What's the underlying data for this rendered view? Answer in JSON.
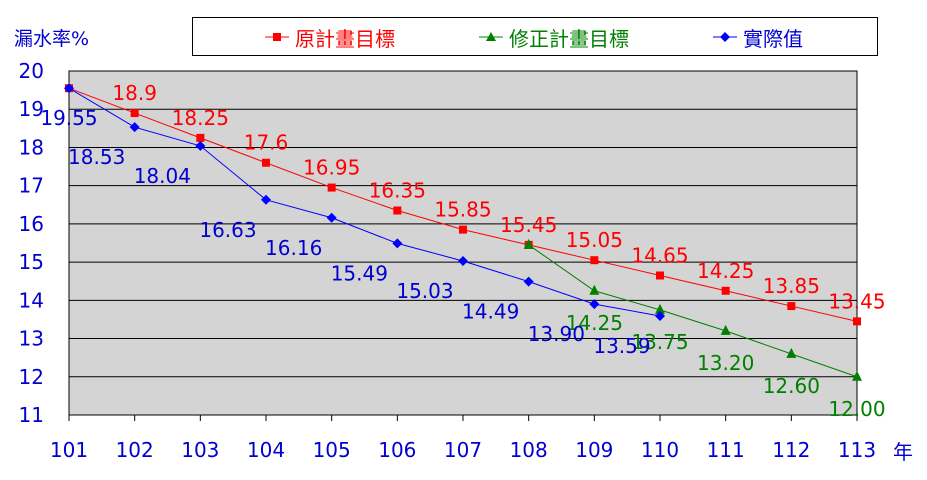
{
  "chart_data": {
    "type": "line",
    "ylabel": "漏水率%",
    "xlabel": "年",
    "categories": [
      "101",
      "102",
      "103",
      "104",
      "105",
      "106",
      "107",
      "108",
      "109",
      "110",
      "111",
      "112",
      "113"
    ],
    "ylim": [
      11,
      20
    ],
    "yticks": [
      "11",
      "12",
      "13",
      "14",
      "15",
      "16",
      "17",
      "18",
      "19",
      "20"
    ],
    "grid": true,
    "legend_position": "top",
    "series": [
      {
        "name": "原計畫目標",
        "color": "#ff0000",
        "marker": "square",
        "x": [
          "101",
          "102",
          "103",
          "104",
          "105",
          "106",
          "107",
          "108",
          "109",
          "110",
          "111",
          "112",
          "113"
        ],
        "values": [
          19.55,
          18.9,
          18.25,
          17.6,
          16.95,
          16.35,
          15.85,
          15.45,
          15.05,
          14.65,
          14.25,
          13.85,
          13.45
        ],
        "labels": [
          "",
          "18.9",
          "18.25",
          "17.6",
          "16.95",
          "16.35",
          "15.85",
          "15.45",
          "15.05",
          "14.65",
          "14.25",
          "13.85",
          "13.45"
        ]
      },
      {
        "name": "修正計畫目標",
        "color": "#008000",
        "marker": "triangle",
        "x": [
          "108",
          "109",
          "110",
          "111",
          "112",
          "113"
        ],
        "values": [
          15.45,
          14.25,
          13.75,
          13.2,
          12.6,
          12.0
        ],
        "labels": [
          "",
          "14.25",
          "13.75",
          "13.20",
          "12.60",
          "12.00"
        ]
      },
      {
        "name": "實際值",
        "color": "#0000ff",
        "marker": "diamond",
        "x": [
          "101",
          "102",
          "103",
          "104",
          "105",
          "106",
          "107",
          "108",
          "109",
          "110"
        ],
        "values": [
          19.55,
          18.53,
          18.04,
          16.63,
          16.16,
          15.49,
          15.03,
          14.49,
          13.9,
          13.59
        ],
        "labels": [
          "19.55",
          "18.53",
          "18.04",
          "16.63",
          "16.16",
          "15.49",
          "15.03",
          "14.49",
          "13.90",
          "13.59"
        ]
      }
    ]
  }
}
